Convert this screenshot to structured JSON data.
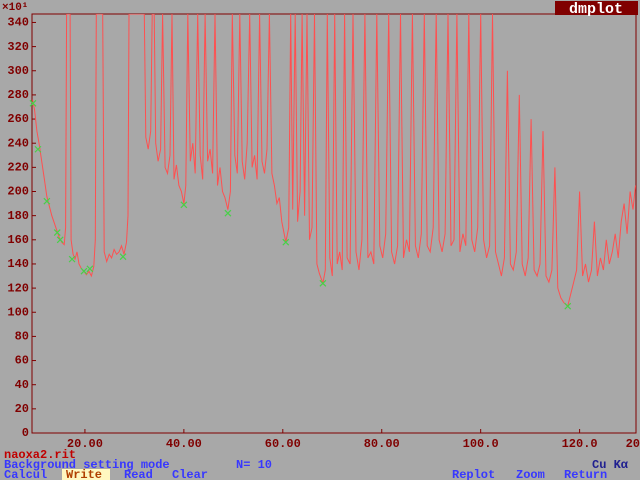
{
  "chart_data": {
    "type": "line",
    "title": "dmplot",
    "y_label": "×10¹",
    "annotations": [
      "20"
    ],
    "xlim": [
      9.3,
      131.4
    ],
    "ylim": [
      0,
      347
    ],
    "xticks": [
      {
        "value": 20,
        "label": "20.00"
      },
      {
        "value": 40,
        "label": "40.00"
      },
      {
        "value": 60,
        "label": "60.00"
      },
      {
        "value": 80,
        "label": "80.00"
      },
      {
        "value": 100,
        "label": "100.0"
      },
      {
        "value": 120,
        "label": "120.0"
      }
    ],
    "yticks": [
      0,
      20,
      40,
      60,
      80,
      100,
      120,
      140,
      160,
      180,
      200,
      220,
      240,
      260,
      280,
      300,
      320,
      340
    ],
    "color": "#ff5050",
    "x": [
      9.4,
      9.8,
      10.3,
      10.8,
      11.3,
      11.8,
      12.3,
      12.8,
      13.3,
      13.8,
      14.3,
      14.8,
      15.3,
      15.8,
      16.1,
      16.3,
      17.0,
      17.2,
      17.6,
      18.0,
      18.4,
      18.8,
      19.3,
      19.8,
      20.3,
      20.8,
      21.3,
      21.8,
      22.1,
      22.3,
      23.6,
      23.9,
      24.4,
      24.9,
      25.4,
      25.9,
      26.4,
      26.9,
      27.4,
      27.9,
      28.4,
      28.7,
      28.9,
      32.0,
      32.3,
      32.8,
      33.3,
      33.6,
      34.0,
      34.3,
      34.8,
      35.3,
      35.7,
      36.2,
      36.7,
      37.2,
      37.6,
      38.0,
      38.5,
      39.0,
      39.5,
      40.0,
      40.4,
      40.8,
      41.3,
      41.8,
      42.3,
      42.8,
      43.3,
      43.8,
      44.3,
      44.8,
      45.3,
      45.8,
      46.3,
      46.8,
      47.3,
      47.8,
      48.3,
      48.9,
      49.4,
      49.8,
      50.3,
      50.8,
      51.3,
      51.8,
      52.3,
      52.8,
      53.3,
      53.8,
      54.3,
      54.8,
      55.3,
      55.8,
      56.3,
      56.8,
      57.3,
      57.8,
      58.3,
      58.8,
      59.3,
      59.8,
      60.6,
      61.2,
      61.6,
      62.0,
      62.5,
      63.0,
      63.5,
      63.9,
      64.4,
      64.9,
      65.4,
      65.9,
      66.4,
      66.9,
      67.4,
      68.1,
      68.6,
      69.0,
      69.5,
      70.0,
      70.5,
      71.0,
      71.5,
      72.0,
      72.5,
      73.0,
      73.6,
      74.2,
      74.8,
      75.4,
      76.0,
      76.6,
      77.2,
      77.8,
      78.4,
      79.0,
      79.6,
      80.2,
      80.8,
      81.4,
      82.0,
      82.6,
      83.2,
      83.8,
      84.4,
      85.0,
      85.6,
      86.2,
      86.8,
      87.4,
      88.0,
      88.6,
      89.2,
      89.8,
      90.4,
      91.0,
      91.6,
      92.2,
      92.8,
      93.4,
      94.0,
      94.6,
      95.2,
      95.8,
      96.4,
      97.0,
      97.6,
      98.2,
      98.8,
      99.4,
      100.0,
      100.6,
      101.2,
      101.8,
      102.4,
      103.0,
      103.6,
      104.2,
      104.8,
      105.4,
      106.0,
      106.6,
      107.2,
      107.8,
      108.4,
      109.0,
      109.6,
      110.2,
      110.8,
      111.4,
      112.0,
      112.6,
      113.2,
      113.8,
      114.4,
      115.0,
      115.6,
      116.2,
      116.8,
      117.6,
      118.2,
      118.8,
      119.4,
      120.0,
      120.6,
      121.2,
      121.8,
      122.4,
      123.0,
      123.6,
      124.2,
      124.8,
      125.4,
      126.0,
      126.6,
      127.2,
      127.8,
      128.4,
      129.0,
      129.6,
      130.2,
      130.8,
      131.3
    ],
    "values": [
      276,
      268,
      250,
      238,
      224,
      210,
      196,
      188,
      180,
      174,
      168,
      162,
      158,
      156,
      170,
      347,
      347,
      160,
      148,
      144,
      150,
      140,
      136,
      134,
      131,
      134,
      130,
      138,
      160,
      347,
      347,
      150,
      142,
      148,
      145,
      152,
      148,
      150,
      155,
      148,
      158,
      180,
      347,
      347,
      245,
      235,
      250,
      347,
      347,
      240,
      225,
      235,
      347,
      220,
      215,
      230,
      347,
      210,
      222,
      205,
      200,
      190,
      205,
      347,
      225,
      240,
      215,
      347,
      230,
      210,
      347,
      225,
      235,
      215,
      347,
      205,
      220,
      200,
      195,
      185,
      200,
      347,
      230,
      215,
      347,
      225,
      210,
      240,
      347,
      220,
      230,
      210,
      347,
      225,
      215,
      235,
      347,
      215,
      205,
      190,
      195,
      175,
      158,
      170,
      347,
      185,
      347,
      175,
      200,
      347,
      180,
      347,
      160,
      170,
      347,
      140,
      132,
      124,
      135,
      347,
      145,
      130,
      347,
      140,
      150,
      135,
      347,
      145,
      140,
      347,
      150,
      135,
      160,
      347,
      145,
      150,
      140,
      347,
      155,
      145,
      165,
      347,
      150,
      140,
      155,
      347,
      145,
      160,
      150,
      347,
      155,
      145,
      165,
      347,
      155,
      150,
      170,
      347,
      160,
      150,
      165,
      347,
      155,
      160,
      347,
      150,
      165,
      155,
      347,
      160,
      150,
      170,
      347,
      160,
      145,
      155,
      347,
      150,
      140,
      130,
      145,
      300,
      140,
      135,
      150,
      280,
      140,
      130,
      145,
      260,
      135,
      130,
      140,
      250,
      130,
      125,
      135,
      220,
      120,
      112,
      108,
      105,
      115,
      125,
      135,
      200,
      130,
      140,
      125,
      135,
      175,
      130,
      145,
      135,
      160,
      140,
      150,
      165,
      145,
      175,
      190,
      165,
      200,
      185,
      205
    ],
    "markers": {
      "color": "#48d048",
      "x": [
        9.5,
        10.5,
        12.3,
        14.4,
        15.0,
        17.4,
        19.8,
        21.0,
        27.7,
        40.0,
        48.9,
        60.6,
        68.1,
        117.6
      ],
      "values": [
        273,
        235,
        192,
        166,
        160,
        144,
        134,
        136,
        146,
        189,
        182,
        158,
        124,
        105
      ]
    }
  },
  "status": {
    "file": "naoxa2.rit",
    "mode": "Background setting mode",
    "count": "N= 10",
    "radiation": "Cu Kα",
    "menu": [
      "Calcul",
      "Write",
      "Read",
      "Clear",
      "Replot",
      "Zoom",
      "Return"
    ]
  }
}
